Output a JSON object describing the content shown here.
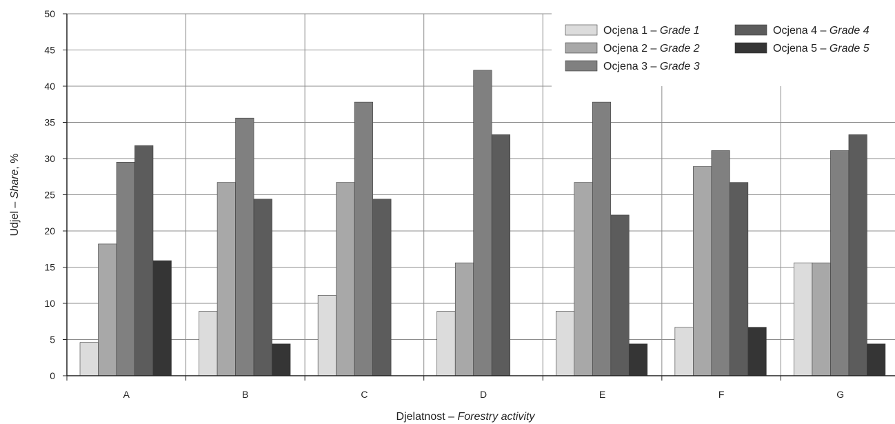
{
  "chart_data": {
    "type": "bar",
    "categories": [
      "A",
      "B",
      "C",
      "D",
      "E",
      "F",
      "G"
    ],
    "series": [
      {
        "name": "Ocjena 1 – Grade 1",
        "name_main": "Ocjena 1 – ",
        "name_italic": "Grade 1",
        "color": "#dcdcdc",
        "values": [
          4.6,
          8.9,
          11.1,
          8.9,
          8.9,
          6.7,
          15.6
        ]
      },
      {
        "name": "Ocjena 2 – Grade 2",
        "name_main": "Ocjena 2 – ",
        "name_italic": "Grade 2",
        "color": "#a8a8a8",
        "values": [
          18.2,
          26.7,
          26.7,
          15.6,
          26.7,
          28.9,
          15.6
        ]
      },
      {
        "name": "Ocjena 3 – Grade 3",
        "name_main": "Ocjena 3 – ",
        "name_italic": "Grade 3",
        "color": "#808080",
        "values": [
          29.5,
          35.6,
          37.8,
          42.2,
          37.8,
          31.1,
          31.1
        ]
      },
      {
        "name": "Ocjena 4 – Grade 4",
        "name_main": "Ocjena 4 – ",
        "name_italic": "Grade 4",
        "color": "#5c5c5c",
        "values": [
          31.8,
          24.4,
          24.4,
          33.3,
          22.2,
          26.7,
          33.3
        ]
      },
      {
        "name": "Ocjena 5 – Grade 5",
        "name_main": "Ocjena 5 – ",
        "name_italic": "Grade 5",
        "color": "#353535",
        "values": [
          15.9,
          4.4,
          0,
          0,
          4.4,
          6.7,
          4.4
        ]
      }
    ],
    "xlabel": "Djelatnost – Forestry activity",
    "xlabel_main": "Djelatnost – ",
    "xlabel_italic": "Forestry activity",
    "ylabel": "Udjel – Share, %",
    "ylabel_main": "Udjel – ",
    "ylabel_italic": "Share",
    "ylabel_suffix": ", %",
    "ylim": [
      0,
      50
    ],
    "yticks": [
      0,
      5,
      10,
      15,
      20,
      25,
      30,
      35,
      40,
      45,
      50
    ],
    "grid": true,
    "legend_position": "top-right"
  }
}
